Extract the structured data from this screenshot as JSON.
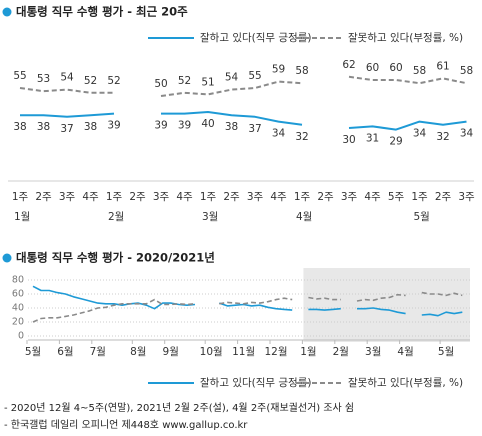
{
  "chart_data": [
    {
      "type": "line",
      "title": "대통령 직무 수행 평가 - 최근 20주",
      "categories": [
        "1주",
        "2주",
        "3주",
        "4주",
        "1주",
        "2주",
        "3주",
        "4주",
        "1주",
        "2주",
        "3주",
        "4주",
        "1주",
        "2주",
        "3주",
        "4주",
        "5주",
        "1주",
        "2주",
        "3주"
      ],
      "months": [
        "1월",
        null,
        null,
        null,
        "2월",
        null,
        null,
        null,
        "3월",
        null,
        null,
        null,
        "4월",
        null,
        null,
        null,
        null,
        "5월",
        null,
        null
      ],
      "series": [
        {
          "name": "잘하고 있다(직무 긍정률)",
          "color": "#1e9ad6",
          "style": "solid",
          "values": [
            38,
            38,
            37,
            38,
            39,
            null,
            39,
            39,
            40,
            38,
            37,
            34,
            32,
            null,
            30,
            31,
            29,
            34,
            32,
            34
          ]
        },
        {
          "name": "잘못하고 있다(부정률, %)",
          "color": "#8a8a8a",
          "style": "dashed",
          "values": [
            55,
            53,
            54,
            52,
            52,
            null,
            50,
            52,
            51,
            54,
            55,
            59,
            58,
            null,
            62,
            60,
            60,
            58,
            61,
            58
          ]
        }
      ]
    },
    {
      "type": "line",
      "title": "대통령 직무 수행 평가 - 2020/2021년",
      "categories": [
        "5월",
        null,
        null,
        null,
        "6월",
        null,
        null,
        null,
        "7월",
        null,
        null,
        null,
        null,
        "8월",
        null,
        null,
        null,
        "9월",
        null,
        null,
        null,
        null,
        "10월",
        null,
        null,
        null,
        "11월",
        null,
        null,
        null,
        "12월",
        null,
        null,
        null,
        "1월",
        null,
        null,
        null,
        "2월",
        null,
        null,
        null,
        "3월",
        null,
        null,
        null,
        "4월",
        null,
        null,
        null,
        null,
        "5월",
        null,
        null
      ],
      "series": [
        {
          "name": "잘하고 있다(직무 긍정률)",
          "color": "#1e9ad6",
          "style": "solid",
          "values": [
            71,
            65,
            65,
            62,
            60,
            56,
            53,
            50,
            47,
            46,
            46,
            44,
            46,
            47,
            44,
            39,
            47,
            47,
            45,
            44,
            45,
            null,
            null,
            47,
            43,
            44,
            45,
            43,
            44,
            41,
            39,
            38,
            37,
            null,
            38,
            38,
            37,
            38,
            39,
            null,
            39,
            39,
            40,
            38,
            37,
            34,
            32,
            null,
            30,
            31,
            29,
            34,
            32,
            34
          ]
        },
        {
          "name": "잘못하고 있다(부정률, %)",
          "color": "#8a8a8a",
          "style": "dashed",
          "values": [
            20,
            25,
            26,
            26,
            28,
            30,
            33,
            36,
            40,
            41,
            44,
            46,
            46,
            46,
            46,
            52,
            45,
            45,
            46,
            45,
            46,
            null,
            null,
            46,
            48,
            47,
            46,
            48,
            47,
            49,
            52,
            54,
            52,
            null,
            55,
            53,
            54,
            52,
            52,
            null,
            50,
            52,
            51,
            54,
            55,
            59,
            58,
            null,
            62,
            60,
            60,
            58,
            61,
            58
          ]
        }
      ],
      "ylim": [
        0,
        80
      ],
      "yticks": [
        0,
        20,
        40,
        60,
        80
      ],
      "grid": true,
      "shaded_from": 34
    }
  ],
  "notes": [
    "- 2020년 12월 4~5주(연말), 2021년 2월 2주(설), 4월 2주(재보궐선거) 조사 쉼",
    "- 한국갤럽 데일리 오피니언 제448호 www.gallup.co.kr"
  ]
}
